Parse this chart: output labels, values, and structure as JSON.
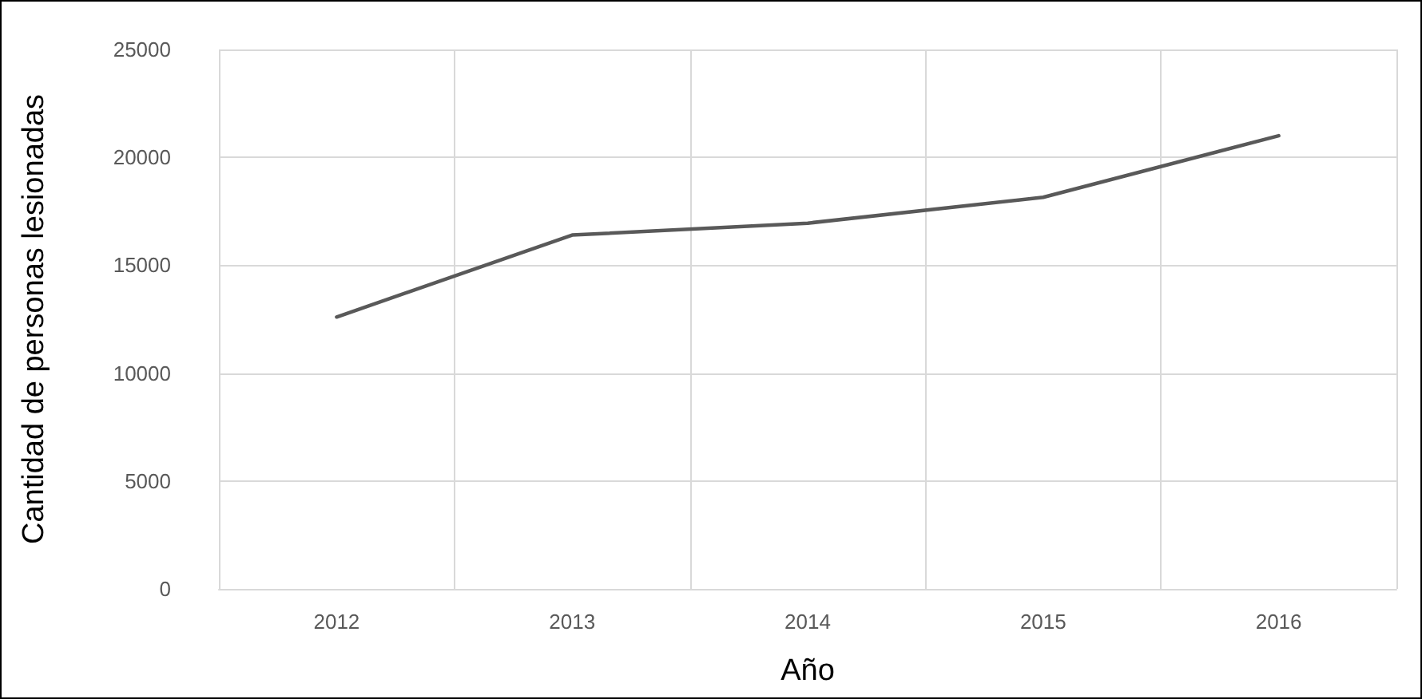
{
  "chart_data": {
    "type": "line",
    "xlabel": "Año",
    "ylabel": "Cantidad de personas lesionadas",
    "categories": [
      "2012",
      "2013",
      "2014",
      "2015",
      "2016"
    ],
    "series": [
      {
        "color": "#595959",
        "values": [
          12600,
          16400,
          16950,
          18150,
          21000
        ]
      }
    ],
    "ylim": [
      0,
      25000
    ],
    "yticks": [
      0,
      5000,
      10000,
      15000,
      20000,
      25000
    ],
    "grid": true,
    "marker": "none",
    "line_style": "solid"
  }
}
